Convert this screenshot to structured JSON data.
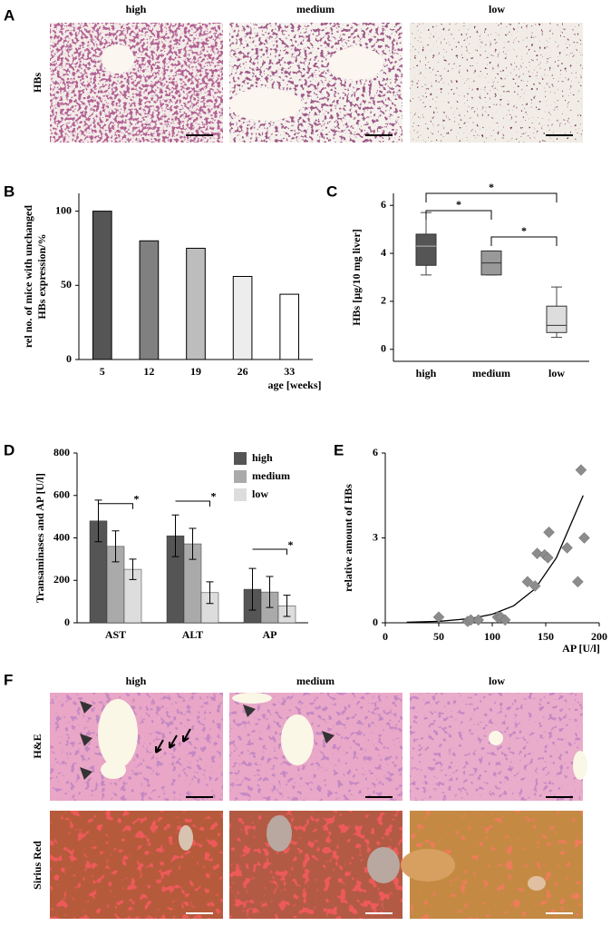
{
  "panel_a": {
    "label": "A",
    "columns": [
      "high",
      "medium",
      "low"
    ],
    "row_label": "HBs"
  },
  "chart_data": [
    {
      "panel_label": "B",
      "type": "bar",
      "categories": [
        "5",
        "12",
        "19",
        "26",
        "33"
      ],
      "values": [
        100,
        80,
        75,
        56,
        44
      ],
      "colors": [
        "#555555",
        "#808080",
        "#bdbdbd",
        "#ededed",
        "#ffffff"
      ],
      "ylim": [
        0,
        112
      ],
      "yticks": [
        0,
        50,
        100
      ],
      "ylabel": [
        "rel no. of mice with unchanged",
        "HBs expression/%"
      ],
      "xlabel": "age [weeks]"
    },
    {
      "panel_label": "C",
      "type": "box",
      "categories": [
        "high",
        "medium",
        "low"
      ],
      "boxes": [
        {
          "color": "#555555",
          "min": 3.1,
          "q1": 3.5,
          "median": 4.3,
          "q3": 4.8,
          "max": 5.7
        },
        {
          "color": "#999999",
          "min": 3.1,
          "q1": 3.1,
          "median": 3.6,
          "q3": 4.1,
          "max": 4.1
        },
        {
          "color": "#dddddd",
          "min": 0.5,
          "q1": 0.7,
          "median": 1.0,
          "q3": 1.8,
          "max": 2.6
        }
      ],
      "ylim": [
        -0.5,
        6.5
      ],
      "yticks": [
        0,
        2,
        4,
        6
      ],
      "ylabel": "HBs [µg/10 mg liver]",
      "significance": [
        {
          "pair": [
            0,
            2
          ],
          "label": "*"
        },
        {
          "pair": [
            0,
            1
          ],
          "label": "*"
        },
        {
          "pair": [
            1,
            2
          ],
          "label": "*"
        }
      ]
    },
    {
      "panel_label": "D",
      "type": "bar",
      "categories": [
        "AST",
        "ALT",
        "AP"
      ],
      "series": [
        {
          "name": "high",
          "color": "#555555",
          "values": [
            480,
            410,
            158
          ],
          "errors": [
            98,
            98,
            98
          ]
        },
        {
          "name": "medium",
          "color": "#aaaaaa",
          "values": [
            360,
            372,
            145
          ],
          "errors": [
            73,
            73,
            73
          ]
        },
        {
          "name": "low",
          "color": "#dddddd",
          "values": [
            252,
            142,
            80
          ],
          "errors": [
            48,
            51,
            50
          ]
        }
      ],
      "ylim": [
        0,
        800
      ],
      "yticks": [
        0,
        200,
        400,
        600,
        800
      ],
      "ylabel": "Transaminases and AP [U/l]",
      "significance": [
        "*",
        "*",
        "*"
      ]
    },
    {
      "panel_label": "E",
      "type": "scatter",
      "x": [
        50,
        77,
        80,
        87,
        105,
        108,
        112,
        133,
        140,
        142,
        149,
        152,
        153,
        170,
        180,
        183,
        186
      ],
      "values": [
        0.2,
        0.05,
        0.1,
        0.1,
        0.2,
        0.2,
        0.1,
        1.45,
        1.3,
        2.45,
        2.4,
        2.3,
        3.2,
        2.65,
        1.45,
        5.4,
        3.0
      ],
      "color": "#8c8c8c",
      "trendline": {
        "x": [
          20,
          50,
          80,
          100,
          120,
          140,
          160,
          185
        ],
        "values": [
          0.02,
          0.05,
          0.15,
          0.3,
          0.6,
          1.2,
          2.3,
          4.5
        ]
      },
      "xlim": [
        0,
        200
      ],
      "xticks": [
        0,
        50,
        100,
        150,
        200
      ],
      "ylim": [
        0,
        6
      ],
      "yticks": [
        0,
        3,
        6
      ],
      "xlabel": "AP [U/l]",
      "ylabel": "relative amount of HBs"
    }
  ],
  "panel_f": {
    "label": "F",
    "columns": [
      "high",
      "medium",
      "low"
    ],
    "rows": [
      "H&E",
      "Sirius Red"
    ]
  }
}
